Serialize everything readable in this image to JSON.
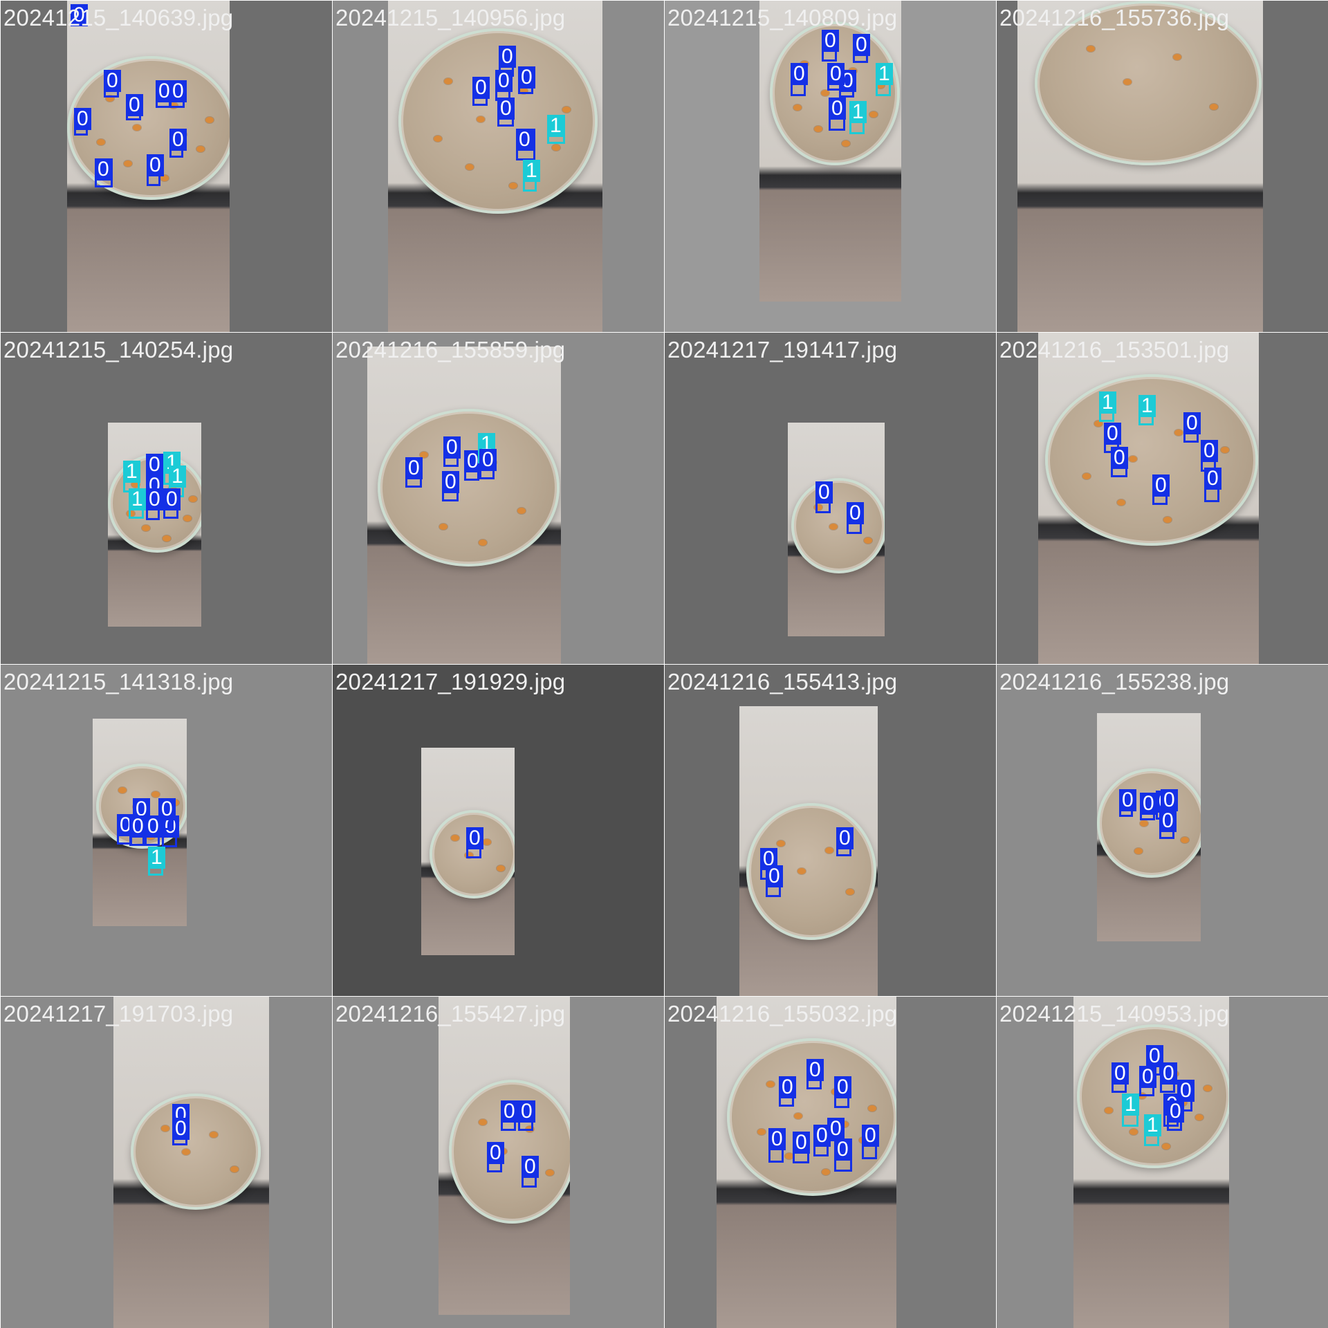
{
  "tiles": [
    {
      "filename": "20241215_140639.jpg",
      "bg": "#6e6e6e",
      "labels": [
        {
          "cls": "0"
        },
        {
          "cls": "0"
        },
        {
          "cls": "0"
        },
        {
          "cls": "0"
        },
        {
          "cls": "0"
        },
        {
          "cls": "0"
        },
        {
          "cls": "0"
        },
        {
          "cls": "0"
        },
        {
          "cls": "0"
        }
      ]
    },
    {
      "filename": "20241215_140956.jpg",
      "bg": "#8c8c8c",
      "labels": [
        {
          "cls": "0"
        },
        {
          "cls": "0"
        },
        {
          "cls": "0"
        },
        {
          "cls": "0"
        },
        {
          "cls": "0"
        },
        {
          "cls": "0"
        },
        {
          "cls": "1"
        },
        {
          "cls": "1"
        }
      ]
    },
    {
      "filename": "20241215_140809.jpg",
      "bg": "#9a9a9a",
      "labels": [
        {
          "cls": "0"
        },
        {
          "cls": "0"
        },
        {
          "cls": "0"
        },
        {
          "cls": "0"
        },
        {
          "cls": "0"
        },
        {
          "cls": "1"
        },
        {
          "cls": "0"
        },
        {
          "cls": "1"
        }
      ]
    },
    {
      "filename": "20241216_155736.jpg",
      "bg": "#6f6f6f",
      "labels": []
    },
    {
      "filename": "20241215_140254.jpg",
      "bg": "#6e6e6e",
      "labels": [
        {
          "cls": "1"
        },
        {
          "cls": "0"
        },
        {
          "cls": "1"
        },
        {
          "cls": "1"
        },
        {
          "cls": "0"
        },
        {
          "cls": "1"
        },
        {
          "cls": "0"
        },
        {
          "cls": "0"
        }
      ]
    },
    {
      "filename": "20241216_155859.jpg",
      "bg": "#8c8c8c",
      "labels": [
        {
          "cls": "0"
        },
        {
          "cls": "0"
        },
        {
          "cls": "0"
        },
        {
          "cls": "1"
        },
        {
          "cls": "0"
        },
        {
          "cls": "0"
        }
      ]
    },
    {
      "filename": "20241217_191417.jpg",
      "bg": "#6a6a6a",
      "labels": [
        {
          "cls": "0"
        },
        {
          "cls": "0"
        }
      ]
    },
    {
      "filename": "20241216_153501.jpg",
      "bg": "#6f6f6f",
      "labels": [
        {
          "cls": "1"
        },
        {
          "cls": "1"
        },
        {
          "cls": "0"
        },
        {
          "cls": "0"
        },
        {
          "cls": "0"
        },
        {
          "cls": "0"
        },
        {
          "cls": "0"
        },
        {
          "cls": "0"
        }
      ]
    },
    {
      "filename": "20241215_141318.jpg",
      "bg": "#8a8a8a",
      "labels": [
        {
          "cls": "0"
        },
        {
          "cls": "0"
        },
        {
          "cls": "0"
        },
        {
          "cls": "0"
        },
        {
          "cls": "0"
        },
        {
          "cls": "0"
        },
        {
          "cls": "1"
        }
      ]
    },
    {
      "filename": "20241217_191929.jpg",
      "bg": "#4e4e4e",
      "labels": [
        {
          "cls": "0"
        }
      ]
    },
    {
      "filename": "20241216_155413.jpg",
      "bg": "#6a6a6a",
      "labels": [
        {
          "cls": "0"
        },
        {
          "cls": "0"
        },
        {
          "cls": "0"
        }
      ]
    },
    {
      "filename": "20241216_155238.jpg",
      "bg": "#8c8c8c",
      "labels": [
        {
          "cls": "0"
        },
        {
          "cls": "0"
        },
        {
          "cls": "0"
        },
        {
          "cls": "0"
        },
        {
          "cls": "0"
        }
      ]
    },
    {
      "filename": "20241217_191703.jpg",
      "bg": "#8a8a8a",
      "labels": [
        {
          "cls": "0"
        },
        {
          "cls": "0"
        }
      ]
    },
    {
      "filename": "20241216_155427.jpg",
      "bg": "#8c8c8c",
      "labels": [
        {
          "cls": "0"
        },
        {
          "cls": "0"
        },
        {
          "cls": "0"
        },
        {
          "cls": "0"
        }
      ]
    },
    {
      "filename": "20241216_155032.jpg",
      "bg": "#7a7a7a",
      "labels": [
        {
          "cls": "0"
        },
        {
          "cls": "0"
        },
        {
          "cls": "0"
        },
        {
          "cls": "0"
        },
        {
          "cls": "0"
        },
        {
          "cls": "0"
        },
        {
          "cls": "0"
        },
        {
          "cls": "0"
        },
        {
          "cls": "0"
        }
      ]
    },
    {
      "filename": "20241215_140953.jpg",
      "bg": "#8c8c8c",
      "labels": [
        {
          "cls": "0"
        },
        {
          "cls": "0"
        },
        {
          "cls": "0"
        },
        {
          "cls": "0"
        },
        {
          "cls": "0"
        },
        {
          "cls": "0"
        },
        {
          "cls": "0"
        },
        {
          "cls": "1"
        },
        {
          "cls": "1"
        }
      ]
    }
  ],
  "class_colors": {
    "0": "#1430e6",
    "1": "#1ccbd6"
  }
}
